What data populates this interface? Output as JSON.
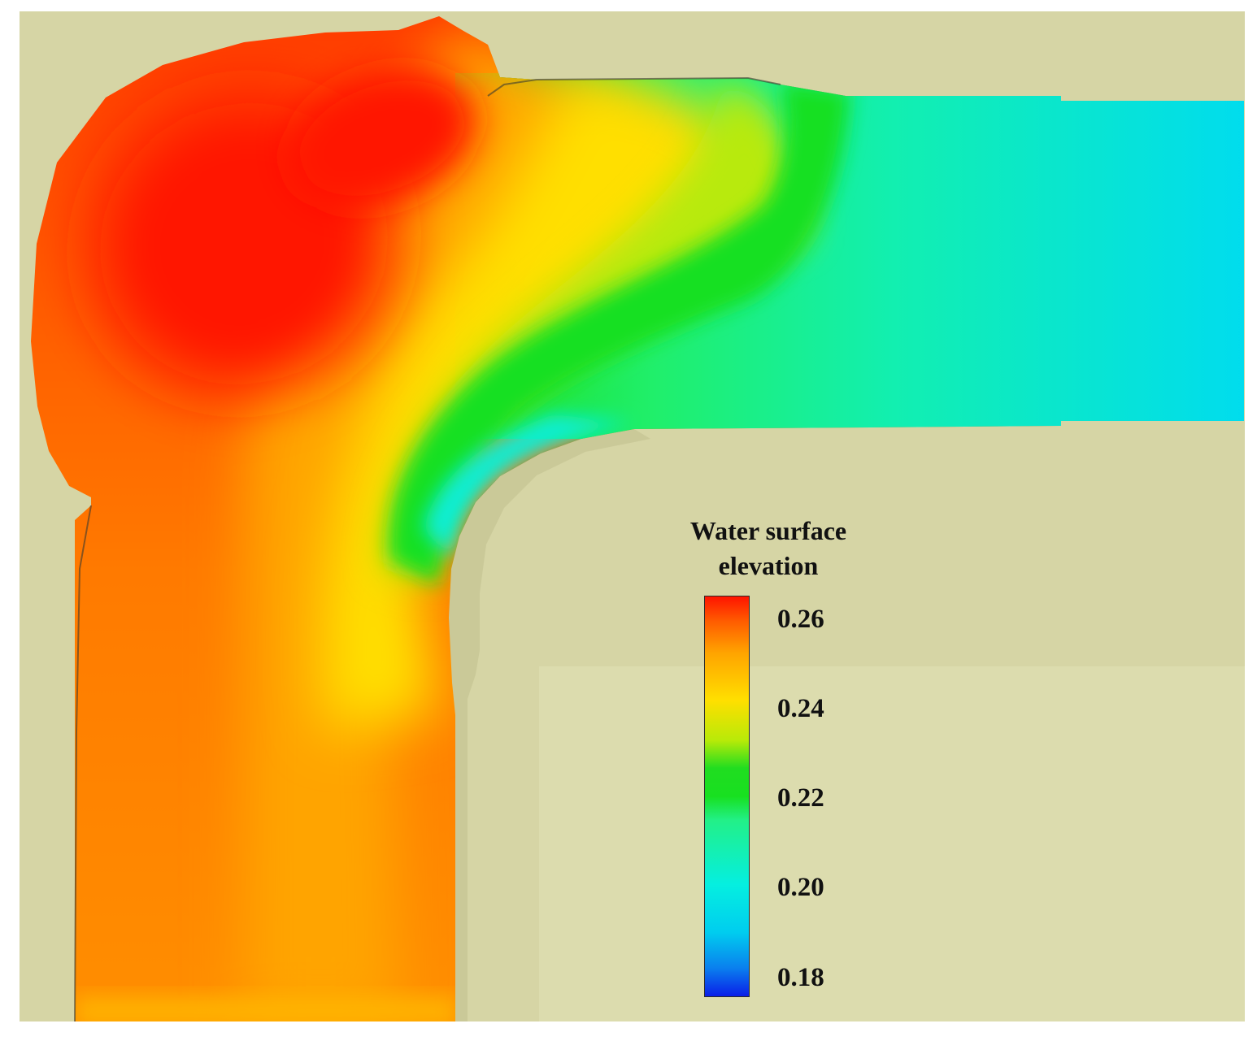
{
  "figure": {
    "background_color": "#d6d5a5",
    "colormap": [
      "#0a1ee8",
      "#00c8ef",
      "#05efe0",
      "#20ef6b",
      "#18e01e",
      "#b8ea08",
      "#ffd800",
      "#ffa000",
      "#ff4a00",
      "#ff1400"
    ]
  },
  "legend": {
    "title_line1": "Water surface",
    "title_line2": "elevation",
    "ticks": [
      "0.26",
      "0.24",
      "0.22",
      "0.20",
      "0.18"
    ],
    "range": [
      0.18,
      0.265
    ]
  }
}
